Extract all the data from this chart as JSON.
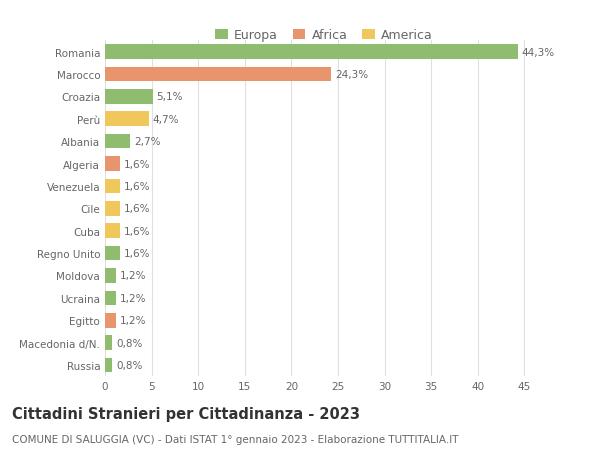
{
  "categories": [
    "Russia",
    "Macedonia d/N.",
    "Egitto",
    "Ucraina",
    "Moldova",
    "Regno Unito",
    "Cuba",
    "Cile",
    "Venezuela",
    "Algeria",
    "Albania",
    "Perù",
    "Croazia",
    "Marocco",
    "Romania"
  ],
  "values": [
    0.8,
    0.8,
    1.2,
    1.2,
    1.2,
    1.6,
    1.6,
    1.6,
    1.6,
    1.6,
    2.7,
    4.7,
    5.1,
    24.3,
    44.3
  ],
  "colors": [
    "#8fbc6e",
    "#8fbc6e",
    "#e8956d",
    "#8fbc6e",
    "#8fbc6e",
    "#8fbc6e",
    "#f0c75a",
    "#f0c75a",
    "#f0c75a",
    "#e8956d",
    "#8fbc6e",
    "#f0c75a",
    "#8fbc6e",
    "#e8956d",
    "#8fbc6e"
  ],
  "labels": [
    "0,8%",
    "0,8%",
    "1,2%",
    "1,2%",
    "1,2%",
    "1,6%",
    "1,6%",
    "1,6%",
    "1,6%",
    "1,6%",
    "2,7%",
    "4,7%",
    "5,1%",
    "24,3%",
    "44,3%"
  ],
  "legend": [
    {
      "label": "Europa",
      "color": "#8fbc6e"
    },
    {
      "label": "Africa",
      "color": "#e8956d"
    },
    {
      "label": "America",
      "color": "#f0c75a"
    }
  ],
  "title": "Cittadini Stranieri per Cittadinanza - 2023",
  "subtitle": "COMUNE DI SALUGGIA (VC) - Dati ISTAT 1° gennaio 2023 - Elaborazione TUTTITALIA.IT",
  "xlim": [
    0,
    47
  ],
  "xticks": [
    0,
    5,
    10,
    15,
    20,
    25,
    30,
    35,
    40,
    45
  ],
  "background_color": "#ffffff",
  "grid_color": "#e0e0e0",
  "bar_height": 0.65,
  "label_fontsize": 7.5,
  "tick_fontsize": 7.5,
  "title_fontsize": 10.5,
  "subtitle_fontsize": 7.5
}
